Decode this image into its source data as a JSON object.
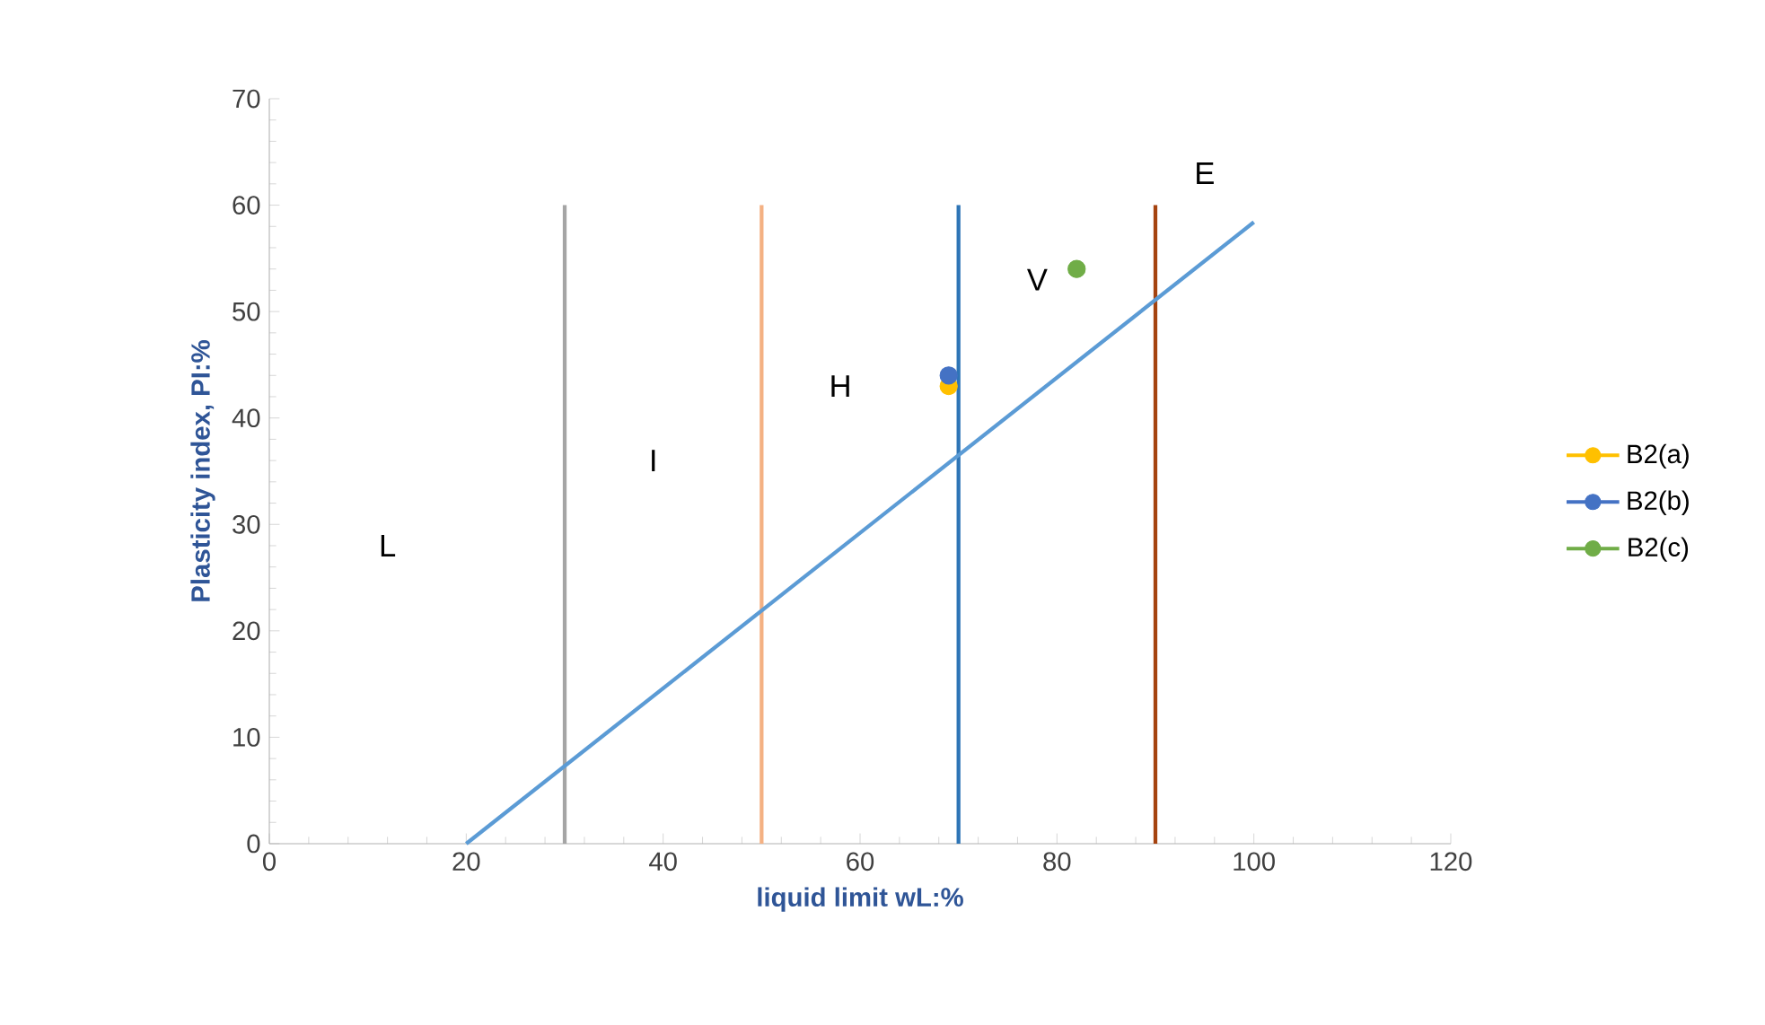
{
  "chart_data": {
    "type": "scatter",
    "xlabel": "liquid limit wL:%",
    "ylabel": "Plasticity index, PI:%",
    "xlim": [
      0,
      120
    ],
    "xticks": [
      0,
      20,
      40,
      60,
      80,
      100,
      120
    ],
    "ylim": [
      0,
      70
    ],
    "yticks": [
      0,
      10,
      20,
      30,
      40,
      50,
      60,
      70
    ],
    "grid": false,
    "legend": "right",
    "series": [
      {
        "type": "line",
        "marker": "none",
        "color": "#a5a5a5",
        "x": [
          30,
          30
        ],
        "values": [
          0,
          60
        ]
      },
      {
        "type": "line",
        "marker": "none",
        "color": "#f4b183",
        "x": [
          50,
          50
        ],
        "values": [
          0,
          60
        ]
      },
      {
        "type": "line",
        "marker": "none",
        "color": "#2e75b6",
        "x": [
          70,
          70
        ],
        "values": [
          0,
          60
        ]
      },
      {
        "type": "line",
        "marker": "none",
        "color": "#a5430f",
        "x": [
          90,
          90
        ],
        "values": [
          0,
          60
        ]
      },
      {
        "type": "line",
        "marker": "none",
        "color": "#5b9bd5",
        "x": [
          20,
          100
        ],
        "values": [
          0,
          58.4
        ]
      },
      {
        "name": "B2(a)",
        "marker": "circle",
        "color": "#ffc000",
        "x": [
          69
        ],
        "values": [
          43
        ]
      },
      {
        "name": "B2(b)",
        "marker": "circle",
        "color": "#4472c4",
        "x": [
          69
        ],
        "values": [
          44
        ]
      },
      {
        "name": "B2(c)",
        "marker": "circle",
        "color": "#70ad47",
        "x": [
          82
        ],
        "values": [
          54
        ]
      }
    ],
    "annotations": [
      "L",
      "I",
      "H",
      "V",
      "E"
    ]
  }
}
